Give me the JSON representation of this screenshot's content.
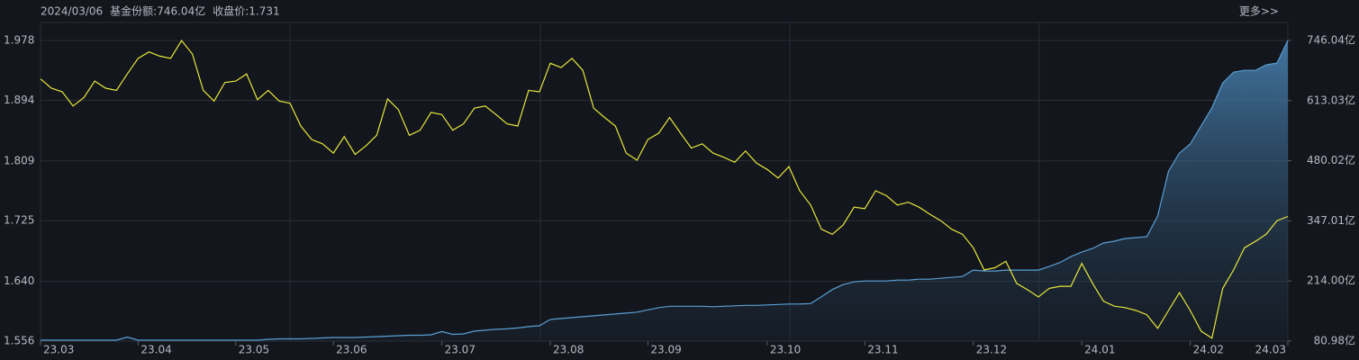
{
  "chart_data": {
    "type": "line",
    "header": [
      "2024/03/06",
      "基金份额:746.04亿",
      "收盘价:1.731"
    ],
    "header_colors": [
      "#e8383d",
      "#5aa6de",
      "#e6e63c"
    ],
    "more": "更多>>",
    "xticks": [
      {
        "value": 0,
        "label": "23.03"
      },
      {
        "value": 9,
        "label": "23.04"
      },
      {
        "value": 18,
        "label": "23.05"
      },
      {
        "value": 27,
        "label": "23.06"
      },
      {
        "value": 37,
        "label": "23.07"
      },
      {
        "value": 47,
        "label": "23.08"
      },
      {
        "value": 56,
        "label": "23.09"
      },
      {
        "value": 67,
        "label": "23.10"
      },
      {
        "value": 76,
        "label": "23.11"
      },
      {
        "value": 86,
        "label": "23.12"
      },
      {
        "value": 96,
        "label": "24.01"
      },
      {
        "value": 106,
        "label": "24.02"
      },
      {
        "value": 115,
        "label": "24.03"
      }
    ],
    "xlim": [
      0,
      115
    ],
    "ylim": [
      1.556,
      1.978
    ],
    "yticks": [
      1.556,
      {
        "value": 1.64,
        "label": "1.640"
      },
      1.725,
      1.809,
      1.894,
      1.978
    ],
    "y2lim": [
      80.98,
      746.04
    ],
    "y2ticks": [
      {
        "value": 80.98,
        "label": "80.98亿"
      },
      {
        "value": 214.0,
        "label": "214.00亿"
      },
      {
        "value": 347.01,
        "label": "347.01亿"
      },
      {
        "value": 480.02,
        "label": "480.02亿"
      },
      {
        "value": 613.03,
        "label": "613.03亿"
      },
      {
        "value": 746.04,
        "label": "746.04亿"
      }
    ],
    "grid": true,
    "series": [
      {
        "color": "#e6e63c",
        "values": [
          1.924,
          1.911,
          1.906,
          1.886,
          1.898,
          1.921,
          1.911,
          1.908,
          1.931,
          1.953,
          1.962,
          1.956,
          1.953,
          1.978,
          1.959,
          1.908,
          1.893,
          1.919,
          1.921,
          1.931,
          1.895,
          1.908,
          1.893,
          1.89,
          1.858,
          1.839,
          1.833,
          1.82,
          1.843,
          1.818,
          1.83,
          1.845,
          1.896,
          1.881,
          1.845,
          1.852,
          1.877,
          1.874,
          1.852,
          1.861,
          1.883,
          1.886,
          1.874,
          1.861,
          1.858,
          1.908,
          1.906,
          1.946,
          1.94,
          1.953,
          1.936,
          1.883,
          1.87,
          1.858,
          1.82,
          1.81,
          1.839,
          1.848,
          1.87,
          1.848,
          1.827,
          1.833,
          1.82,
          1.814,
          1.807,
          1.823,
          1.806,
          1.797,
          1.785,
          1.801,
          1.767,
          1.747,
          1.713,
          1.706,
          1.719,
          1.744,
          1.742,
          1.767,
          1.76,
          1.747,
          1.751,
          1.744,
          1.734,
          1.725,
          1.713,
          1.706,
          1.687,
          1.656,
          1.659,
          1.668,
          1.637,
          1.628,
          1.618,
          1.63,
          1.633,
          1.633,
          1.665,
          1.637,
          1.612,
          1.605,
          1.603,
          1.599,
          1.593,
          1.574,
          1.599,
          1.624,
          1.599,
          1.57,
          1.56,
          1.63,
          1.656,
          1.687,
          1.696,
          1.706,
          1.725,
          1.731
        ]
      },
      {
        "color": "#5a9fd4",
        "axis": "y2",
        "area": true,
        "values": [
          83,
          83,
          83,
          83,
          83,
          83,
          83,
          83,
          90,
          83,
          83,
          83,
          83,
          83,
          83,
          83,
          83,
          83,
          83,
          83,
          83,
          85,
          86,
          86,
          86,
          87,
          88,
          89,
          89,
          89,
          90,
          91,
          92,
          93,
          94,
          94,
          95,
          102,
          96,
          97,
          103,
          105,
          107,
          108,
          110,
          113,
          115,
          129,
          131,
          133,
          135,
          137,
          139,
          141,
          143,
          145,
          150,
          155,
          158,
          158,
          158,
          158,
          157,
          158,
          159,
          160,
          160,
          161,
          162,
          163,
          163,
          164,
          179,
          195,
          206,
          212,
          214,
          214,
          214,
          216,
          216,
          218,
          218,
          220,
          222,
          224,
          238,
          236,
          236,
          238,
          238,
          238,
          238,
          246,
          255,
          268,
          278,
          286,
          298,
          302,
          308,
          310,
          312,
          358,
          457,
          497,
          517,
          557,
          597,
          652,
          676,
          680,
          680,
          692,
          696,
          746.04
        ]
      }
    ]
  }
}
